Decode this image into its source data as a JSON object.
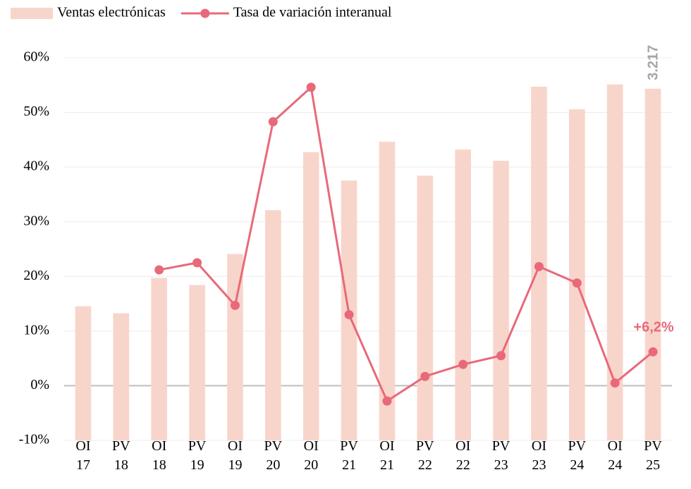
{
  "chart_data": {
    "type": "bar-line",
    "categories": [
      "OI 17",
      "PV 18",
      "OI 18",
      "PV 19",
      "OI 19",
      "PV 20",
      "OI 20",
      "PV 21",
      "OI 21",
      "PV 22",
      "OI 22",
      "PV 23",
      "OI 23",
      "PV 24",
      "OI 24",
      "PV 25"
    ],
    "series": [
      {
        "name": "Ventas electrónicas",
        "type": "bar",
        "axis": "y2",
        "color": "#f8d5cb",
        "values": [
          1227,
          1163,
          1486,
          1421,
          1705,
          2106,
          2636,
          2377,
          2732,
          2422,
          2661,
          2558,
          3236,
          3029,
          3256,
          3217
        ],
        "value_labels": [
          null,
          null,
          null,
          null,
          null,
          null,
          null,
          null,
          null,
          null,
          null,
          null,
          null,
          null,
          null,
          "3.217"
        ],
        "label_color": "#a6a6a6"
      },
      {
        "name": "Tasa de variación interanual",
        "type": "line",
        "color": "#e8697a",
        "values": [
          null,
          null,
          21.2,
          22.5,
          14.7,
          48.3,
          54.6,
          13.0,
          -2.8,
          1.7,
          3.9,
          5.5,
          21.8,
          18.8,
          0.5,
          6.2
        ],
        "value_labels": [
          null,
          null,
          null,
          null,
          null,
          null,
          null,
          null,
          null,
          null,
          null,
          null,
          null,
          null,
          null,
          "+6,2%"
        ]
      }
    ],
    "ylim": [
      -10,
      60
    ],
    "yticks": [
      {
        "value": -10,
        "label": "-10%"
      },
      {
        "value": 0,
        "label": "0%"
      },
      {
        "value": 10,
        "label": "10%"
      },
      {
        "value": 20,
        "label": "20%"
      },
      {
        "value": 30,
        "label": "30%"
      },
      {
        "value": 40,
        "label": "40%"
      },
      {
        "value": 50,
        "label": "50%"
      },
      {
        "value": 60,
        "label": "60%"
      }
    ],
    "y2lim": [
      0,
      3500
    ],
    "grid": true,
    "legend": "top-left"
  }
}
